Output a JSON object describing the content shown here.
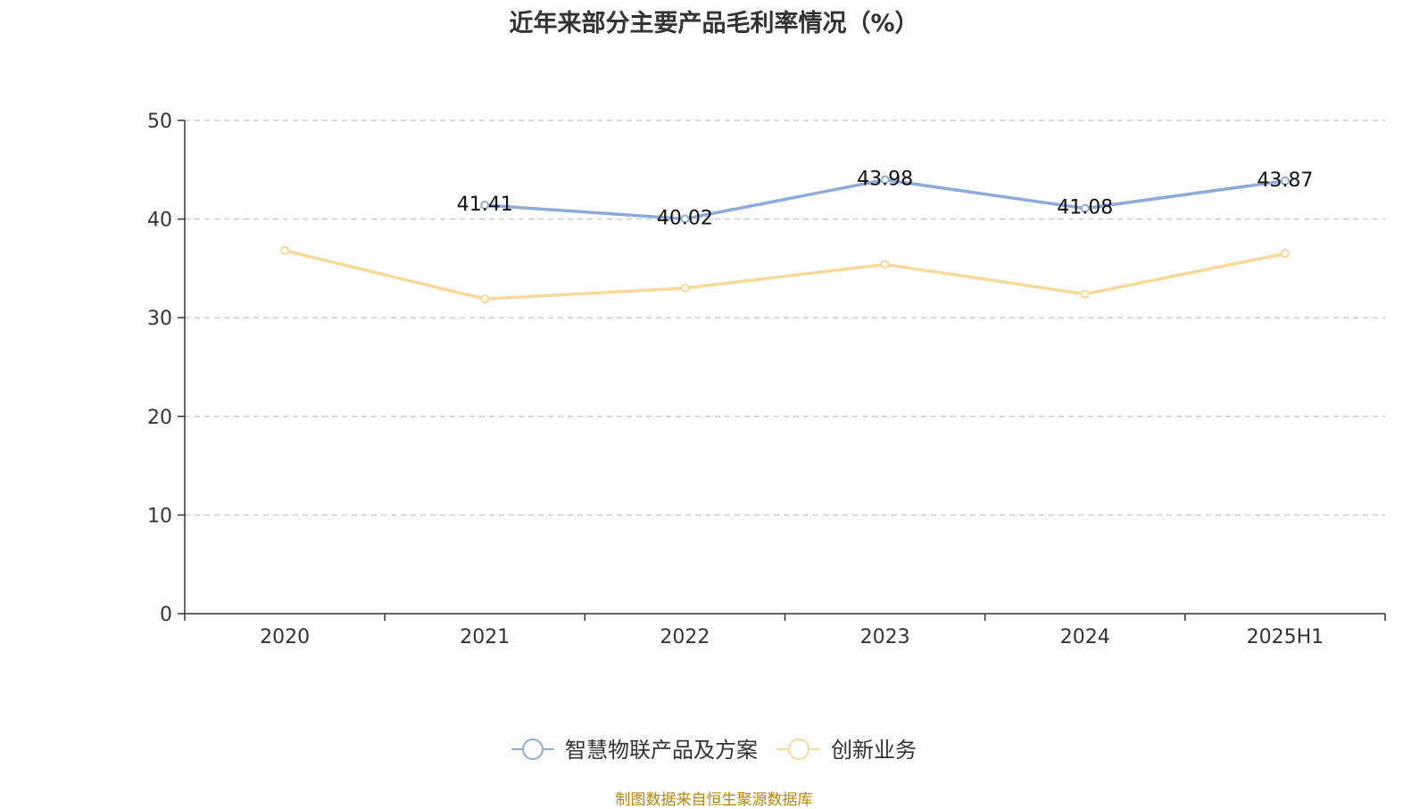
{
  "chart_data": {
    "type": "line",
    "title": "近年来部分主要产品毛利率情况（%）",
    "categories": [
      "2020",
      "2021",
      "2022",
      "2023",
      "2024",
      "2025H1"
    ],
    "ylim": [
      0,
      50
    ],
    "yticks": [
      0,
      10,
      20,
      30,
      40,
      50
    ],
    "grid": true,
    "legend_position": "bottom",
    "series": [
      {
        "name": "智慧物联产品及方案",
        "color": "#8eaad8",
        "values": [
          null,
          41.41,
          40.02,
          43.98,
          41.08,
          43.87
        ],
        "labels": [
          "",
          "41.41",
          "40.02",
          "43.98",
          "41.08",
          "43.87"
        ]
      },
      {
        "name": "创新业务",
        "color": "#f9d898",
        "values": [
          36.8,
          31.9,
          33.0,
          35.4,
          32.4,
          36.5
        ],
        "labels": [
          "",
          "",
          "",
          "",
          "",
          ""
        ]
      }
    ],
    "source": "制图数据来自恒生聚源数据库"
  }
}
